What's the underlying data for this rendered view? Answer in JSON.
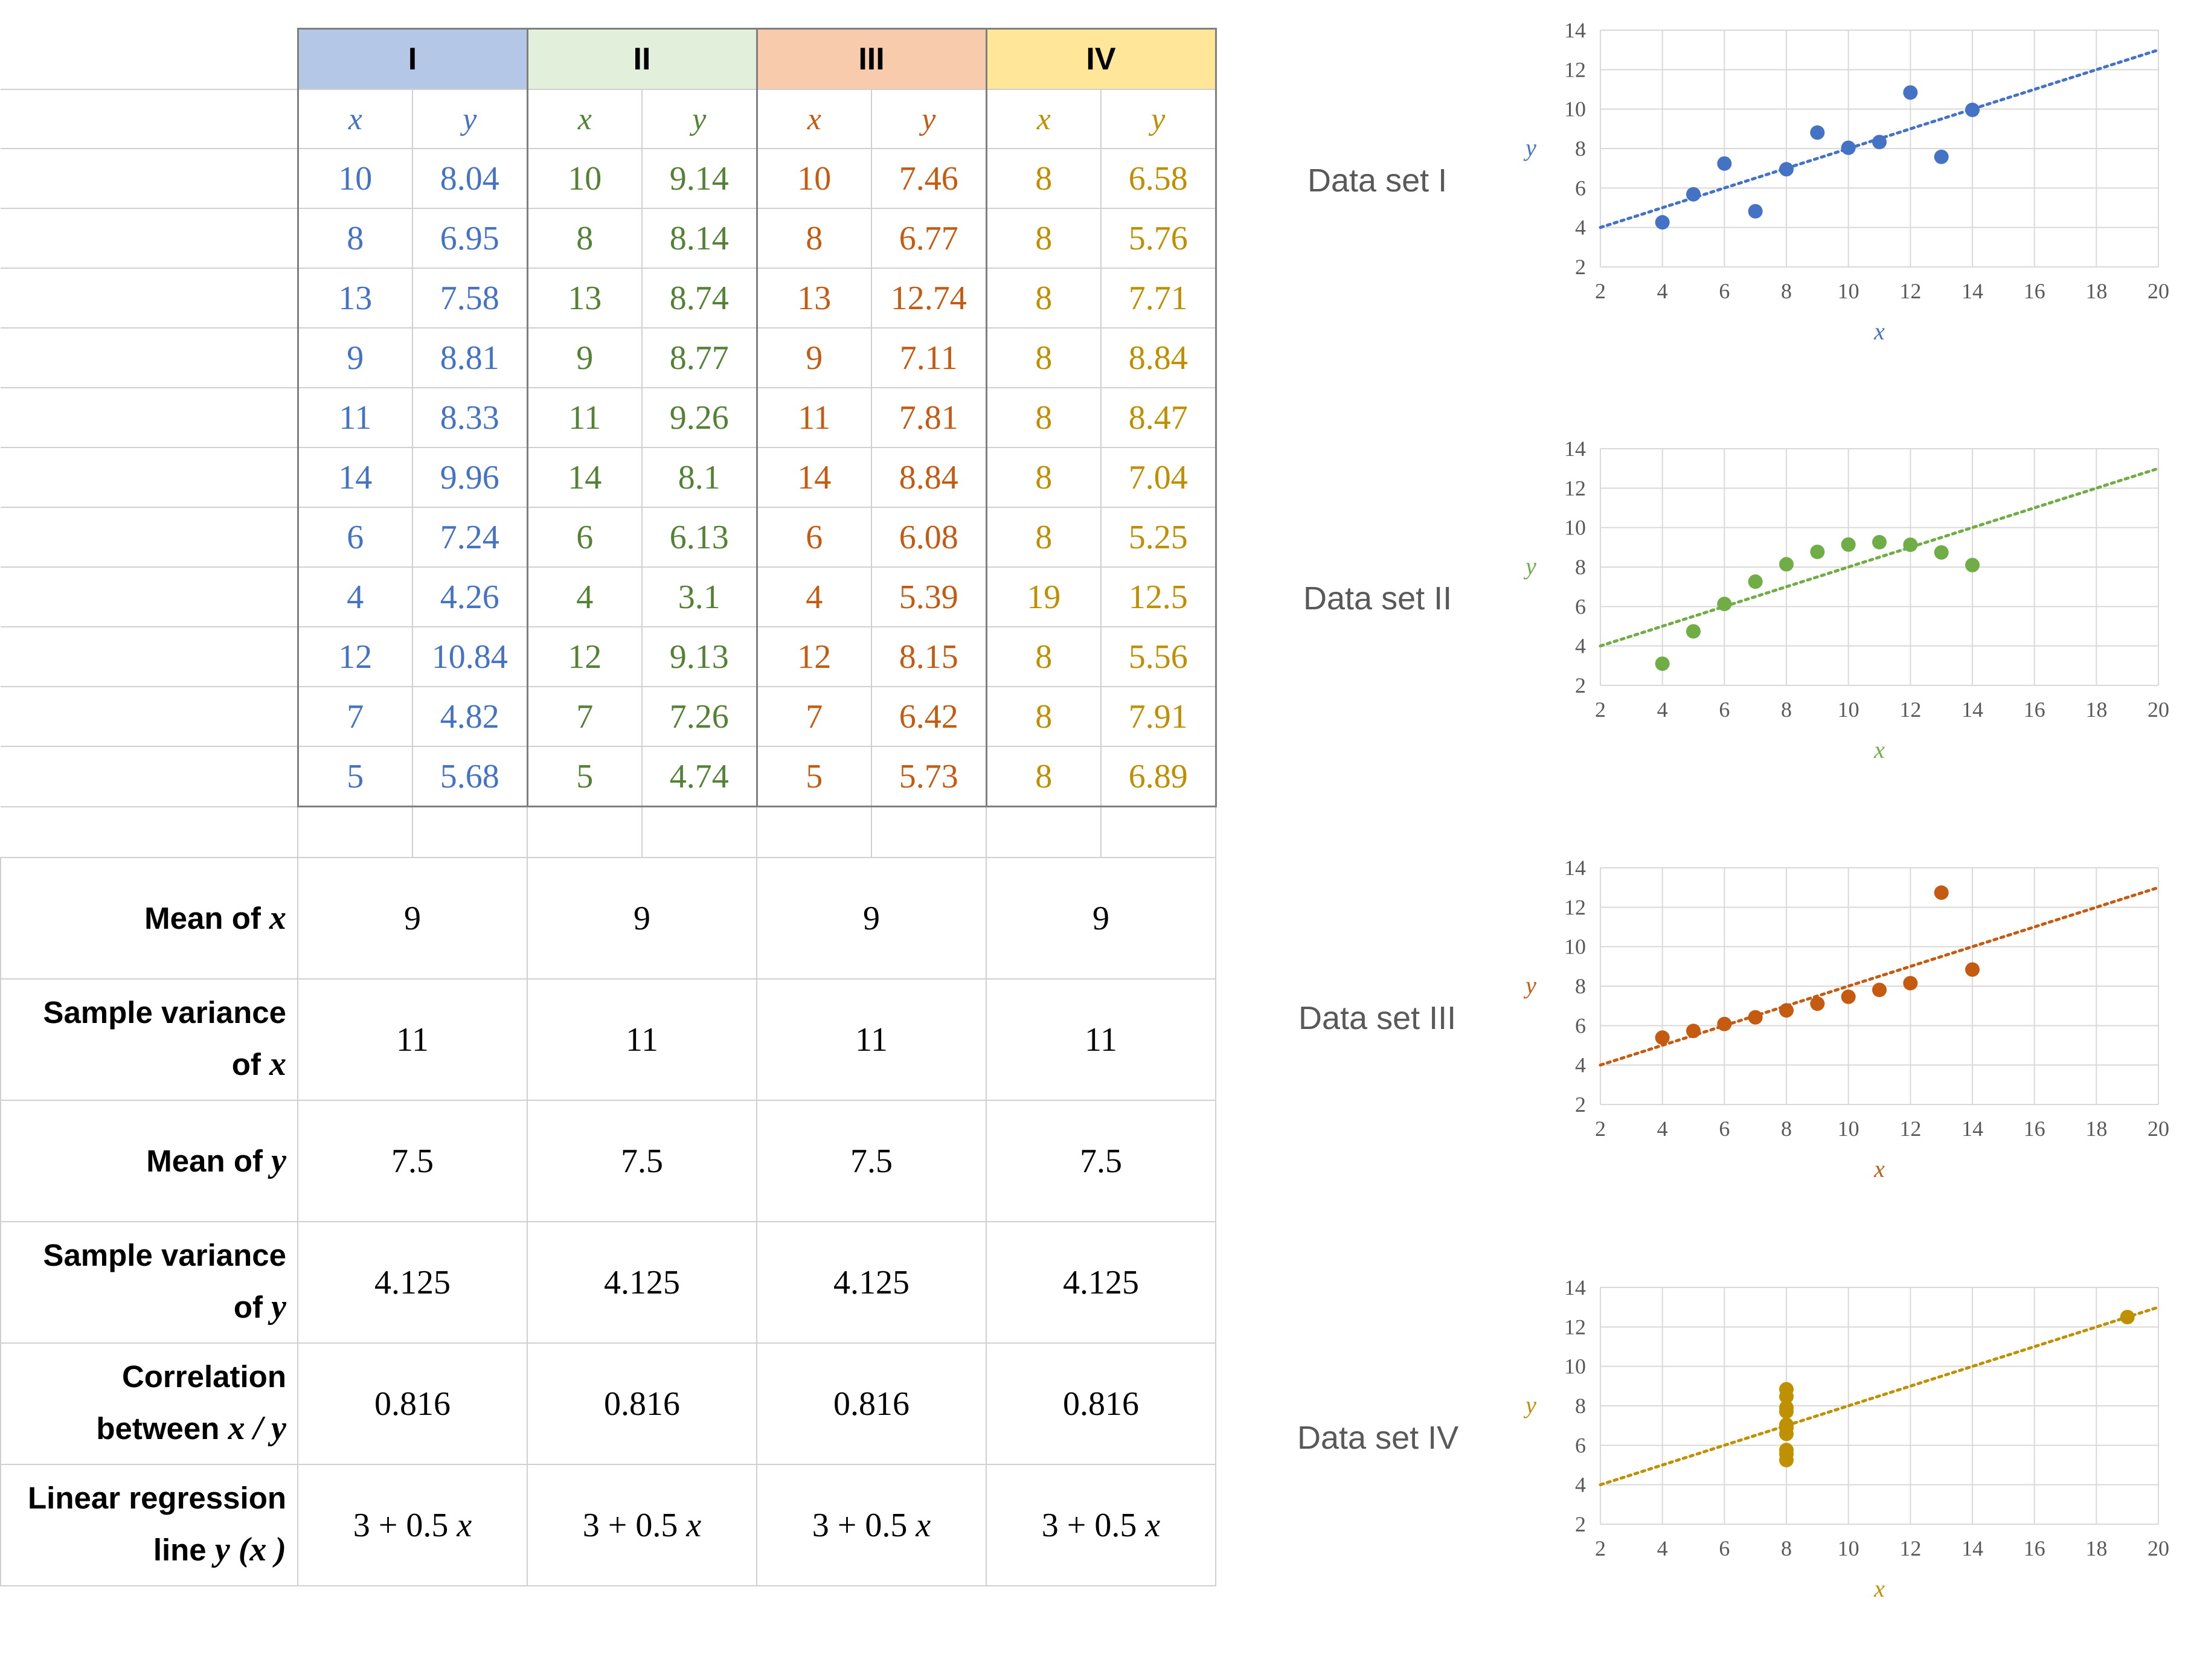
{
  "table": {
    "set_headers": [
      "I",
      "II",
      "III",
      "IV"
    ],
    "var_headers": [
      "x",
      "y"
    ],
    "rows": [
      [
        "10",
        "8.04",
        "10",
        "9.14",
        "10",
        "7.46",
        "8",
        "6.58"
      ],
      [
        "8",
        "6.95",
        "8",
        "8.14",
        "8",
        "6.77",
        "8",
        "5.76"
      ],
      [
        "13",
        "7.58",
        "13",
        "8.74",
        "13",
        "12.74",
        "8",
        "7.71"
      ],
      [
        "9",
        "8.81",
        "9",
        "8.77",
        "9",
        "7.11",
        "8",
        "8.84"
      ],
      [
        "11",
        "8.33",
        "11",
        "9.26",
        "11",
        "7.81",
        "8",
        "8.47"
      ],
      [
        "14",
        "9.96",
        "14",
        "8.1",
        "14",
        "8.84",
        "8",
        "7.04"
      ],
      [
        "6",
        "7.24",
        "6",
        "6.13",
        "6",
        "6.08",
        "8",
        "5.25"
      ],
      [
        "4",
        "4.26",
        "4",
        "3.1",
        "4",
        "5.39",
        "19",
        "12.5"
      ],
      [
        "12",
        "10.84",
        "12",
        "9.13",
        "12",
        "8.15",
        "8",
        "5.56"
      ],
      [
        "7",
        "4.82",
        "7",
        "7.26",
        "7",
        "6.42",
        "8",
        "7.91"
      ],
      [
        "5",
        "5.68",
        "5",
        "4.74",
        "5",
        "5.73",
        "8",
        "6.89"
      ]
    ],
    "stats": [
      {
        "label_lines": [
          [
            "Mean of ",
            "x"
          ]
        ],
        "values": [
          "9",
          "9",
          "9",
          "9"
        ]
      },
      {
        "label_lines": [
          [
            "Sample variance",
            ""
          ],
          [
            "of ",
            "x"
          ]
        ],
        "values": [
          "11",
          "11",
          "11",
          "11"
        ]
      },
      {
        "label_lines": [
          [
            "Mean of ",
            "y"
          ]
        ],
        "values": [
          "7.5",
          "7.5",
          "7.5",
          "7.5"
        ]
      },
      {
        "label_lines": [
          [
            "Sample variance",
            ""
          ],
          [
            "of ",
            "y"
          ]
        ],
        "values": [
          "4.125",
          "4.125",
          "4.125",
          "4.125"
        ]
      },
      {
        "label_lines": [
          [
            "Correlation",
            ""
          ],
          [
            "between ",
            "x / y"
          ]
        ],
        "values": [
          "0.816",
          "0.816",
          "0.816",
          "0.816"
        ]
      },
      {
        "label_lines": [
          [
            "Linear regression",
            ""
          ],
          [
            "line ",
            "y (x )"
          ]
        ],
        "values": [
          "3 + 0.5 x",
          "3 + 0.5 x",
          "3 + 0.5 x",
          "3 + 0.5 x"
        ]
      }
    ]
  },
  "colors": {
    "set1": "#4472c4",
    "set2": "#70ad47",
    "set3": "#c55a11",
    "set4": "#bf9000"
  },
  "chart_data": [
    {
      "type": "scatter",
      "title": "Data set I",
      "xlabel": "x",
      "ylabel": "y",
      "xlim": [
        2,
        20
      ],
      "ylim": [
        2,
        14
      ],
      "xticks": [
        2,
        4,
        6,
        8,
        10,
        12,
        14,
        16,
        18,
        20
      ],
      "yticks": [
        2,
        4,
        6,
        8,
        10,
        12,
        14
      ],
      "grid": true,
      "trendline": {
        "intercept": 3,
        "slope": 0.5,
        "style": "dotted"
      },
      "x": [
        10,
        8,
        13,
        9,
        11,
        14,
        6,
        4,
        12,
        7,
        5
      ],
      "y": [
        8.04,
        6.95,
        7.58,
        8.81,
        8.33,
        9.96,
        7.24,
        4.26,
        10.84,
        4.82,
        5.68
      ]
    },
    {
      "type": "scatter",
      "title": "Data set II",
      "xlabel": "x",
      "ylabel": "y",
      "xlim": [
        2,
        20
      ],
      "ylim": [
        2,
        14
      ],
      "xticks": [
        2,
        4,
        6,
        8,
        10,
        12,
        14,
        16,
        18,
        20
      ],
      "yticks": [
        2,
        4,
        6,
        8,
        10,
        12,
        14
      ],
      "grid": true,
      "trendline": {
        "intercept": 3,
        "slope": 0.5,
        "style": "dotted"
      },
      "x": [
        10,
        8,
        13,
        9,
        11,
        14,
        6,
        4,
        12,
        7,
        5
      ],
      "y": [
        9.14,
        8.14,
        8.74,
        8.77,
        9.26,
        8.1,
        6.13,
        3.1,
        9.13,
        7.26,
        4.74
      ]
    },
    {
      "type": "scatter",
      "title": "Data set III",
      "xlabel": "x",
      "ylabel": "y",
      "xlim": [
        2,
        20
      ],
      "ylim": [
        2,
        14
      ],
      "xticks": [
        2,
        4,
        6,
        8,
        10,
        12,
        14,
        16,
        18,
        20
      ],
      "yticks": [
        2,
        4,
        6,
        8,
        10,
        12,
        14
      ],
      "grid": true,
      "trendline": {
        "intercept": 3,
        "slope": 0.5,
        "style": "dotted"
      },
      "x": [
        10,
        8,
        13,
        9,
        11,
        14,
        6,
        4,
        12,
        7,
        5
      ],
      "y": [
        7.46,
        6.77,
        12.74,
        7.11,
        7.81,
        8.84,
        6.08,
        5.39,
        8.15,
        6.42,
        5.73
      ]
    },
    {
      "type": "scatter",
      "title": "Data set IV",
      "xlabel": "x",
      "ylabel": "y",
      "xlim": [
        2,
        20
      ],
      "ylim": [
        2,
        14
      ],
      "xticks": [
        2,
        4,
        6,
        8,
        10,
        12,
        14,
        16,
        18,
        20
      ],
      "yticks": [
        2,
        4,
        6,
        8,
        10,
        12,
        14
      ],
      "grid": true,
      "trendline": {
        "intercept": 3,
        "slope": 0.5,
        "style": "dotted"
      },
      "x": [
        8,
        8,
        8,
        8,
        8,
        8,
        8,
        19,
        8,
        8,
        8
      ],
      "y": [
        6.58,
        5.76,
        7.71,
        8.84,
        8.47,
        7.04,
        5.25,
        12.5,
        5.56,
        7.91,
        6.89
      ]
    }
  ]
}
